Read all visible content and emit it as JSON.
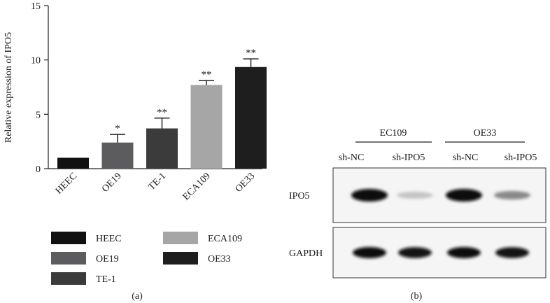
{
  "chart_data": {
    "type": "bar",
    "ylabel": "Relative expression of IPO5",
    "ylim": [
      0,
      15
    ],
    "yticks": [
      0,
      5,
      10,
      15
    ],
    "categories": [
      "HEEC",
      "OE19",
      "TE-1",
      "ECA109",
      "OE33"
    ],
    "values": [
      1.0,
      2.4,
      3.7,
      7.7,
      9.35
    ],
    "errors": [
      0,
      0.75,
      0.95,
      0.4,
      0.75
    ],
    "significance": [
      "",
      "*",
      "**",
      "**",
      "**"
    ],
    "colors": [
      "#111111",
      "#5c5c5e",
      "#3b3b3b",
      "#a6a6a6",
      "#1e1e1e"
    ],
    "grid": false,
    "legend": {
      "position": "below",
      "labels": [
        "HEEC",
        "OE19",
        "TE-1",
        "ECA109",
        "OE33"
      ]
    }
  },
  "panel_a_label": "(a)",
  "panel_b_label": "(b)",
  "blot": {
    "groups": [
      "EC109",
      "OE33"
    ],
    "lanes": [
      "sh-NC",
      "sh-IPO5",
      "sh-NC",
      "sh-IPO5"
    ],
    "rows": [
      {
        "label": "IPO5",
        "intensities": [
          1.0,
          0.18,
          1.0,
          0.42
        ]
      },
      {
        "label": "GAPDH",
        "intensities": [
          1.0,
          0.95,
          1.0,
          0.95
        ]
      }
    ]
  }
}
